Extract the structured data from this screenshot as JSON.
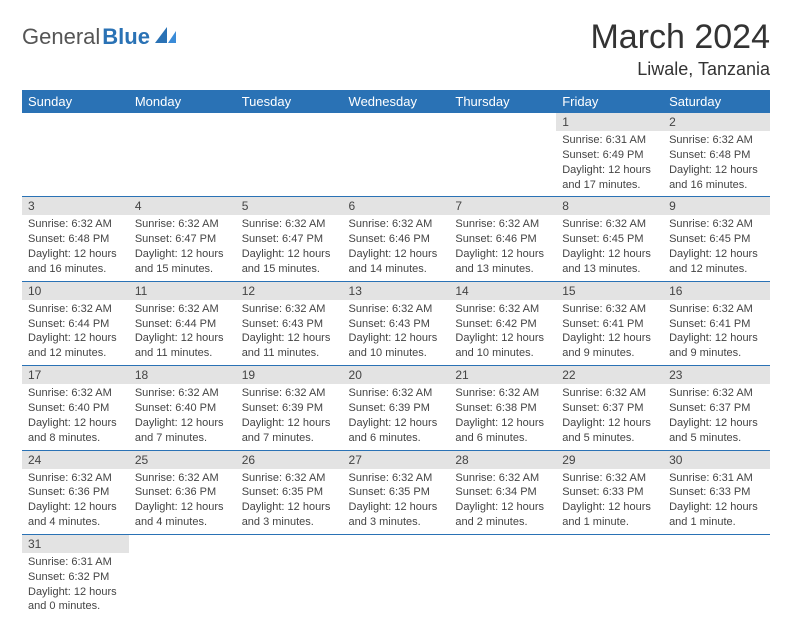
{
  "logo": {
    "word1": "General",
    "word2": "Blue"
  },
  "title": "March 2024",
  "location": "Liwale, Tanzania",
  "colors": {
    "header_bg": "#2a72b5",
    "header_fg": "#ffffff",
    "daynum_bg": "#e3e3e3",
    "rule": "#2a72b5",
    "text": "#444444",
    "logo_gray": "#555555",
    "logo_blue": "#2a72b5"
  },
  "day_labels": [
    "Sunday",
    "Monday",
    "Tuesday",
    "Wednesday",
    "Thursday",
    "Friday",
    "Saturday"
  ],
  "weeks": [
    [
      {
        "n": "",
        "sr": "",
        "ss": "",
        "dl": ""
      },
      {
        "n": "",
        "sr": "",
        "ss": "",
        "dl": ""
      },
      {
        "n": "",
        "sr": "",
        "ss": "",
        "dl": ""
      },
      {
        "n": "",
        "sr": "",
        "ss": "",
        "dl": ""
      },
      {
        "n": "",
        "sr": "",
        "ss": "",
        "dl": ""
      },
      {
        "n": "1",
        "sr": "Sunrise: 6:31 AM",
        "ss": "Sunset: 6:49 PM",
        "dl": "Daylight: 12 hours and 17 minutes."
      },
      {
        "n": "2",
        "sr": "Sunrise: 6:32 AM",
        "ss": "Sunset: 6:48 PM",
        "dl": "Daylight: 12 hours and 16 minutes."
      }
    ],
    [
      {
        "n": "3",
        "sr": "Sunrise: 6:32 AM",
        "ss": "Sunset: 6:48 PM",
        "dl": "Daylight: 12 hours and 16 minutes."
      },
      {
        "n": "4",
        "sr": "Sunrise: 6:32 AM",
        "ss": "Sunset: 6:47 PM",
        "dl": "Daylight: 12 hours and 15 minutes."
      },
      {
        "n": "5",
        "sr": "Sunrise: 6:32 AM",
        "ss": "Sunset: 6:47 PM",
        "dl": "Daylight: 12 hours and 15 minutes."
      },
      {
        "n": "6",
        "sr": "Sunrise: 6:32 AM",
        "ss": "Sunset: 6:46 PM",
        "dl": "Daylight: 12 hours and 14 minutes."
      },
      {
        "n": "7",
        "sr": "Sunrise: 6:32 AM",
        "ss": "Sunset: 6:46 PM",
        "dl": "Daylight: 12 hours and 13 minutes."
      },
      {
        "n": "8",
        "sr": "Sunrise: 6:32 AM",
        "ss": "Sunset: 6:45 PM",
        "dl": "Daylight: 12 hours and 13 minutes."
      },
      {
        "n": "9",
        "sr": "Sunrise: 6:32 AM",
        "ss": "Sunset: 6:45 PM",
        "dl": "Daylight: 12 hours and 12 minutes."
      }
    ],
    [
      {
        "n": "10",
        "sr": "Sunrise: 6:32 AM",
        "ss": "Sunset: 6:44 PM",
        "dl": "Daylight: 12 hours and 12 minutes."
      },
      {
        "n": "11",
        "sr": "Sunrise: 6:32 AM",
        "ss": "Sunset: 6:44 PM",
        "dl": "Daylight: 12 hours and 11 minutes."
      },
      {
        "n": "12",
        "sr": "Sunrise: 6:32 AM",
        "ss": "Sunset: 6:43 PM",
        "dl": "Daylight: 12 hours and 11 minutes."
      },
      {
        "n": "13",
        "sr": "Sunrise: 6:32 AM",
        "ss": "Sunset: 6:43 PM",
        "dl": "Daylight: 12 hours and 10 minutes."
      },
      {
        "n": "14",
        "sr": "Sunrise: 6:32 AM",
        "ss": "Sunset: 6:42 PM",
        "dl": "Daylight: 12 hours and 10 minutes."
      },
      {
        "n": "15",
        "sr": "Sunrise: 6:32 AM",
        "ss": "Sunset: 6:41 PM",
        "dl": "Daylight: 12 hours and 9 minutes."
      },
      {
        "n": "16",
        "sr": "Sunrise: 6:32 AM",
        "ss": "Sunset: 6:41 PM",
        "dl": "Daylight: 12 hours and 9 minutes."
      }
    ],
    [
      {
        "n": "17",
        "sr": "Sunrise: 6:32 AM",
        "ss": "Sunset: 6:40 PM",
        "dl": "Daylight: 12 hours and 8 minutes."
      },
      {
        "n": "18",
        "sr": "Sunrise: 6:32 AM",
        "ss": "Sunset: 6:40 PM",
        "dl": "Daylight: 12 hours and 7 minutes."
      },
      {
        "n": "19",
        "sr": "Sunrise: 6:32 AM",
        "ss": "Sunset: 6:39 PM",
        "dl": "Daylight: 12 hours and 7 minutes."
      },
      {
        "n": "20",
        "sr": "Sunrise: 6:32 AM",
        "ss": "Sunset: 6:39 PM",
        "dl": "Daylight: 12 hours and 6 minutes."
      },
      {
        "n": "21",
        "sr": "Sunrise: 6:32 AM",
        "ss": "Sunset: 6:38 PM",
        "dl": "Daylight: 12 hours and 6 minutes."
      },
      {
        "n": "22",
        "sr": "Sunrise: 6:32 AM",
        "ss": "Sunset: 6:37 PM",
        "dl": "Daylight: 12 hours and 5 minutes."
      },
      {
        "n": "23",
        "sr": "Sunrise: 6:32 AM",
        "ss": "Sunset: 6:37 PM",
        "dl": "Daylight: 12 hours and 5 minutes."
      }
    ],
    [
      {
        "n": "24",
        "sr": "Sunrise: 6:32 AM",
        "ss": "Sunset: 6:36 PM",
        "dl": "Daylight: 12 hours and 4 minutes."
      },
      {
        "n": "25",
        "sr": "Sunrise: 6:32 AM",
        "ss": "Sunset: 6:36 PM",
        "dl": "Daylight: 12 hours and 4 minutes."
      },
      {
        "n": "26",
        "sr": "Sunrise: 6:32 AM",
        "ss": "Sunset: 6:35 PM",
        "dl": "Daylight: 12 hours and 3 minutes."
      },
      {
        "n": "27",
        "sr": "Sunrise: 6:32 AM",
        "ss": "Sunset: 6:35 PM",
        "dl": "Daylight: 12 hours and 3 minutes."
      },
      {
        "n": "28",
        "sr": "Sunrise: 6:32 AM",
        "ss": "Sunset: 6:34 PM",
        "dl": "Daylight: 12 hours and 2 minutes."
      },
      {
        "n": "29",
        "sr": "Sunrise: 6:32 AM",
        "ss": "Sunset: 6:33 PM",
        "dl": "Daylight: 12 hours and 1 minute."
      },
      {
        "n": "30",
        "sr": "Sunrise: 6:31 AM",
        "ss": "Sunset: 6:33 PM",
        "dl": "Daylight: 12 hours and 1 minute."
      }
    ],
    [
      {
        "n": "31",
        "sr": "Sunrise: 6:31 AM",
        "ss": "Sunset: 6:32 PM",
        "dl": "Daylight: 12 hours and 0 minutes."
      },
      {
        "n": "",
        "sr": "",
        "ss": "",
        "dl": ""
      },
      {
        "n": "",
        "sr": "",
        "ss": "",
        "dl": ""
      },
      {
        "n": "",
        "sr": "",
        "ss": "",
        "dl": ""
      },
      {
        "n": "",
        "sr": "",
        "ss": "",
        "dl": ""
      },
      {
        "n": "",
        "sr": "",
        "ss": "",
        "dl": ""
      },
      {
        "n": "",
        "sr": "",
        "ss": "",
        "dl": ""
      }
    ]
  ]
}
